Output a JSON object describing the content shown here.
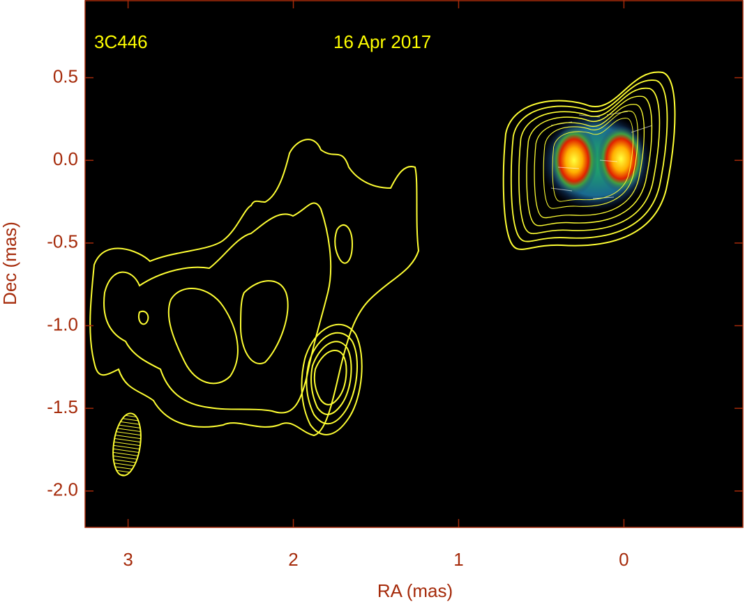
{
  "chart_data": {
    "type": "image",
    "title": "3C446",
    "subtitle": "16 Apr 2017",
    "xlabel": "RA (mas)",
    "ylabel": "Dec (mas)",
    "xlim": [
      3.26,
      -0.72
    ],
    "xticks": [
      3,
      2,
      1,
      0
    ],
    "ylim": [
      -2.22,
      0.97
    ],
    "yticks": [
      0.5,
      {
        "value": 0,
        "label": "0.0"
      },
      -0.5,
      {
        "value": -1,
        "label": "-1.0"
      },
      -1.5,
      {
        "value": -2,
        "label": "-2.0"
      }
    ],
    "axis_color": "#a52a0a",
    "annotation_color": "#ffff00",
    "background": "#000000"
  }
}
